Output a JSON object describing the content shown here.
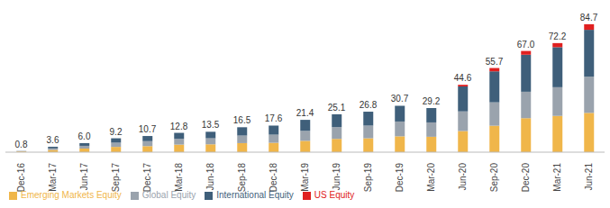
{
  "chart_data": {
    "type": "bar",
    "stacked": true,
    "tick_labels": "x",
    "legend": "bottom",
    "grid": false,
    "categories": [
      "Dec-16",
      "Mar-17",
      "Jun-17",
      "Sep-17",
      "Dec-17",
      "Mar-18",
      "Jun-18",
      "Sep-18",
      "Dec-18",
      "Mar-19",
      "Jun-19",
      "Sep-19",
      "Dec-19",
      "Mar-20",
      "Jun-20",
      "Sep-20",
      "Dec-20",
      "Mar-21",
      "Jun-21"
    ],
    "series": [
      {
        "name": "Emerging Markets Equity",
        "color": "#f0b64a",
        "values": [
          0.5,
          1.5,
          2.4,
          3.5,
          4.0,
          5.0,
          5.2,
          6.0,
          6.2,
          7.5,
          8.8,
          9.2,
          10.5,
          10.2,
          14.0,
          17.5,
          22.5,
          24.0,
          26.0
        ]
      },
      {
        "name": "Global Equity",
        "color": "#9aa3ad",
        "values": [
          0.2,
          1.0,
          1.8,
          2.8,
          3.3,
          3.8,
          4.0,
          5.0,
          5.4,
          6.6,
          7.8,
          8.4,
          9.8,
          9.5,
          13.0,
          15.5,
          17.5,
          19.0,
          24.0
        ]
      },
      {
        "name": "International Equity",
        "color": "#3f5f7a",
        "values": [
          0.1,
          1.1,
          1.8,
          2.9,
          3.4,
          4.0,
          4.3,
          5.5,
          6.0,
          7.3,
          8.5,
          9.2,
          10.4,
          9.5,
          16.5,
          20.5,
          24.5,
          26.5,
          31.0
        ]
      },
      {
        "name": "US Equity",
        "color": "#e02020",
        "values": [
          0,
          0,
          0,
          0,
          0,
          0,
          0,
          0,
          0,
          0,
          0,
          0,
          0,
          0,
          1.1,
          2.2,
          2.5,
          2.7,
          3.7
        ]
      }
    ],
    "totals": [
      0.8,
      3.6,
      6.0,
      9.2,
      10.7,
      12.8,
      13.5,
      16.5,
      17.6,
      21.4,
      25.1,
      26.8,
      30.7,
      29.2,
      44.6,
      55.7,
      67.0,
      72.2,
      84.7
    ],
    "total_labels": [
      "0.8",
      "3.6",
      "6.0",
      "9.2",
      "10.7",
      "12.8",
      "13.5",
      "16.5",
      "17.6",
      "21.4",
      "25.1",
      "26.8",
      "30.7",
      "29.2",
      "44.6",
      "55.7",
      "67.0",
      "72.2",
      "84.7"
    ],
    "ylim": [
      0,
      90
    ]
  }
}
